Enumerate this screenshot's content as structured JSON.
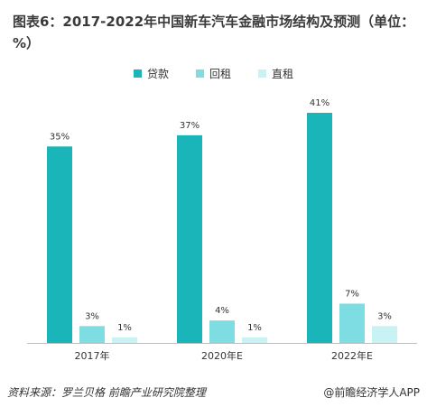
{
  "title": "图表6：2017-2022年中国新车汽车金融市场结构及预测（单位：%）",
  "source": "资料来源：罗兰贝格 前瞻产业研究院整理",
  "watermark": "@前瞻经济学人APP",
  "colors": {
    "loan": "#1ab5b8",
    "lease_back": "#7ddde3",
    "direct_lease": "#c9f2f4",
    "axis": "#bfbfbf"
  },
  "chart_data": {
    "type": "bar",
    "categories": [
      "2017年",
      "2020年E",
      "2022年E"
    ],
    "series": [
      {
        "name": "贷款",
        "values": [
          35,
          37,
          41
        ],
        "labels": [
          "35%",
          "37%",
          "41%"
        ]
      },
      {
        "name": "回租",
        "values": [
          3,
          4,
          7
        ],
        "labels": [
          "3%",
          "4%",
          "7%"
        ]
      },
      {
        "name": "直租",
        "values": [
          1,
          1,
          3
        ],
        "labels": [
          "1%",
          "1%",
          "3%"
        ]
      }
    ],
    "ylim": [
      0,
      41
    ],
    "legend_position": "top-center",
    "grid": false
  }
}
